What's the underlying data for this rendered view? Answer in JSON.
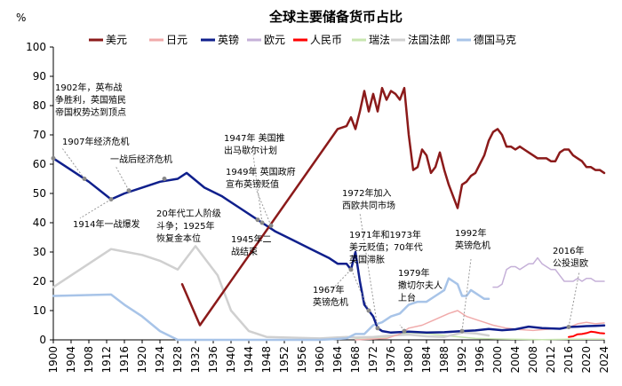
{
  "chart_data": {
    "type": "line",
    "title": "全球主要储备货币占比",
    "ylabel": "%",
    "xlim": [
      1900,
      2024
    ],
    "ylim": [
      0,
      100
    ],
    "yticks": [
      0,
      10,
      20,
      30,
      40,
      50,
      60,
      70,
      80,
      90,
      100
    ],
    "xticks": [
      1900,
      1904,
      1908,
      1912,
      1916,
      1920,
      1924,
      1928,
      1932,
      1936,
      1940,
      1944,
      1948,
      1952,
      1956,
      1960,
      1964,
      1968,
      1972,
      1976,
      1980,
      1984,
      1988,
      1992,
      1996,
      2000,
      2004,
      2008,
      2012,
      2016,
      2020,
      2024
    ],
    "legend": [
      "美元",
      "日元",
      "英镑",
      "欧元",
      "人民币",
      "瑞法",
      "法国法郎",
      "德国马克"
    ],
    "series": [
      {
        "name": "美元",
        "color": "#8B1A1A",
        "width": 2.5,
        "points": [
          [
            1929,
            19
          ],
          [
            1933,
            5
          ],
          [
            1964,
            72
          ],
          [
            1966,
            73
          ],
          [
            1967,
            76
          ],
          [
            1968,
            72
          ],
          [
            1969,
            78
          ],
          [
            1970,
            85
          ],
          [
            1971,
            78
          ],
          [
            1972,
            84
          ],
          [
            1973,
            78
          ],
          [
            1974,
            86
          ],
          [
            1975,
            82
          ],
          [
            1976,
            85
          ],
          [
            1977,
            84
          ],
          [
            1978,
            82
          ],
          [
            1979,
            86
          ],
          [
            1980,
            70
          ],
          [
            1981,
            58
          ],
          [
            1982,
            59
          ],
          [
            1983,
            65
          ],
          [
            1984,
            63
          ],
          [
            1985,
            57
          ],
          [
            1986,
            59
          ],
          [
            1987,
            64
          ],
          [
            1988,
            58
          ],
          [
            1989,
            53
          ],
          [
            1990,
            49
          ],
          [
            1991,
            45
          ],
          [
            1992,
            53
          ],
          [
            1993,
            54
          ],
          [
            1994,
            56
          ],
          [
            1995,
            57
          ],
          [
            1996,
            60
          ],
          [
            1997,
            63
          ],
          [
            1998,
            68
          ],
          [
            1999,
            71
          ],
          [
            2000,
            72
          ],
          [
            2001,
            70
          ],
          [
            2002,
            66
          ],
          [
            2003,
            66
          ],
          [
            2004,
            65
          ],
          [
            2005,
            66
          ],
          [
            2006,
            65
          ],
          [
            2007,
            64
          ],
          [
            2008,
            63
          ],
          [
            2009,
            62
          ],
          [
            2010,
            62
          ],
          [
            2011,
            62
          ],
          [
            2012,
            61
          ],
          [
            2013,
            61
          ],
          [
            2014,
            64
          ],
          [
            2015,
            65
          ],
          [
            2016,
            65
          ],
          [
            2017,
            63
          ],
          [
            2018,
            62
          ],
          [
            2019,
            61
          ],
          [
            2020,
            59
          ],
          [
            2021,
            59
          ],
          [
            2022,
            58
          ],
          [
            2023,
            58
          ],
          [
            2024,
            57
          ]
        ]
      },
      {
        "name": "日元",
        "color": "#F0AAAA",
        "width": 1.5,
        "points": [
          [
            1968,
            0
          ],
          [
            1975,
            0.5
          ],
          [
            1978,
            2
          ],
          [
            1980,
            4
          ],
          [
            1983,
            5
          ],
          [
            1986,
            7
          ],
          [
            1989,
            9
          ],
          [
            1991,
            10
          ],
          [
            1993,
            8
          ],
          [
            1995,
            7
          ],
          [
            1997,
            6
          ],
          [
            1999,
            5
          ],
          [
            2002,
            4
          ],
          [
            2005,
            3.5
          ],
          [
            2008,
            3.2
          ],
          [
            2011,
            3.6
          ],
          [
            2014,
            3.9
          ],
          [
            2016,
            4.2
          ],
          [
            2018,
            5.5
          ],
          [
            2020,
            6
          ],
          [
            2022,
            5.5
          ],
          [
            2024,
            5.8
          ]
        ]
      },
      {
        "name": "英镑",
        "color": "#0F1F8C",
        "width": 2.5,
        "points": [
          [
            1900,
            62
          ],
          [
            1904,
            58
          ],
          [
            1908,
            54
          ],
          [
            1913,
            48
          ],
          [
            1916,
            50
          ],
          [
            1920,
            52
          ],
          [
            1924,
            54
          ],
          [
            1928,
            55
          ],
          [
            1930,
            57
          ],
          [
            1934,
            52
          ],
          [
            1938,
            49
          ],
          [
            1942,
            45
          ],
          [
            1946,
            41
          ],
          [
            1950,
            37
          ],
          [
            1954,
            34
          ],
          [
            1958,
            31
          ],
          [
            1962,
            28
          ],
          [
            1964,
            26
          ],
          [
            1966,
            26
          ],
          [
            1967,
            24
          ],
          [
            1968,
            30
          ],
          [
            1969,
            20
          ],
          [
            1970,
            12
          ],
          [
            1971,
            10
          ],
          [
            1972,
            8
          ],
          [
            1973,
            4
          ],
          [
            1974,
            3
          ],
          [
            1976,
            2.5
          ],
          [
            1980,
            2.8
          ],
          [
            1984,
            2.5
          ],
          [
            1988,
            2.6
          ],
          [
            1992,
            3
          ],
          [
            1995,
            3.2
          ],
          [
            1998,
            3.7
          ],
          [
            2001,
            3.3
          ],
          [
            2004,
            3.6
          ],
          [
            2007,
            4.5
          ],
          [
            2010,
            4
          ],
          [
            2014,
            3.8
          ],
          [
            2016,
            4.4
          ],
          [
            2018,
            4.5
          ],
          [
            2020,
            4.7
          ],
          [
            2022,
            4.8
          ],
          [
            2024,
            4.9
          ]
        ]
      },
      {
        "name": "欧元",
        "color": "#C5B0D8",
        "width": 1.5,
        "points": [
          [
            1999,
            18
          ],
          [
            2000,
            18
          ],
          [
            2001,
            19
          ],
          [
            2002,
            24
          ],
          [
            2003,
            25
          ],
          [
            2004,
            25
          ],
          [
            2005,
            24
          ],
          [
            2006,
            25
          ],
          [
            2007,
            26
          ],
          [
            2008,
            26
          ],
          [
            2009,
            28
          ],
          [
            2010,
            26
          ],
          [
            2011,
            25
          ],
          [
            2012,
            24
          ],
          [
            2013,
            24
          ],
          [
            2014,
            22
          ],
          [
            2015,
            20
          ],
          [
            2016,
            20
          ],
          [
            2017,
            20
          ],
          [
            2018,
            21
          ],
          [
            2019,
            20
          ],
          [
            2020,
            21
          ],
          [
            2021,
            21
          ],
          [
            2022,
            20
          ],
          [
            2023,
            20
          ],
          [
            2024,
            20
          ]
        ]
      },
      {
        "name": "人民币",
        "color": "#FF0000",
        "width": 2,
        "points": [
          [
            2016,
            1
          ],
          [
            2017,
            1.2
          ],
          [
            2018,
            1.9
          ],
          [
            2019,
            2
          ],
          [
            2020,
            2.3
          ],
          [
            2021,
            2.8
          ],
          [
            2022,
            2.6
          ],
          [
            2023,
            2.3
          ],
          [
            2024,
            2.2
          ]
        ]
      },
      {
        "name": "瑞法",
        "color": "#C8E6B0",
        "width": 1.5,
        "points": [
          [
            1968,
            0.5
          ],
          [
            1975,
            1
          ],
          [
            1980,
            2.5
          ],
          [
            1985,
            2
          ],
          [
            1990,
            1.2
          ],
          [
            1995,
            0.5
          ],
          [
            2000,
            0.3
          ],
          [
            2010,
            0.1
          ],
          [
            2016,
            0.2
          ],
          [
            2020,
            0.2
          ],
          [
            2024,
            0.2
          ]
        ]
      },
      {
        "name": "法国法郎",
        "color": "#D0D0D0",
        "width": 2.5,
        "points": [
          [
            1900,
            18
          ],
          [
            1913,
            31
          ],
          [
            1920,
            29
          ],
          [
            1924,
            27
          ],
          [
            1928,
            24
          ],
          [
            1932,
            32
          ],
          [
            1934,
            28
          ],
          [
            1937,
            22
          ],
          [
            1940,
            10
          ],
          [
            1944,
            3
          ],
          [
            1948,
            1
          ],
          [
            1960,
            0.5
          ],
          [
            1966,
            1
          ],
          [
            1968,
            0.8
          ],
          [
            1972,
            1
          ],
          [
            1976,
            1.5
          ],
          [
            1980,
            1.8
          ],
          [
            1984,
            1.2
          ],
          [
            1988,
            1
          ],
          [
            1992,
            2.5
          ],
          [
            1995,
            2.2
          ],
          [
            1998,
            1.5
          ]
        ]
      },
      {
        "name": "德国马克",
        "color": "#A8C4E8",
        "width": 2.5,
        "points": [
          [
            1900,
            15
          ],
          [
            1913,
            15.5
          ],
          [
            1916,
            12
          ],
          [
            1920,
            8
          ],
          [
            1924,
            3
          ],
          [
            1928,
            0
          ],
          [
            1940,
            0
          ],
          [
            1960,
            0
          ],
          [
            1966,
            0.5
          ],
          [
            1968,
            2
          ],
          [
            1970,
            2
          ],
          [
            1972,
            5
          ],
          [
            1974,
            6
          ],
          [
            1976,
            8
          ],
          [
            1978,
            9
          ],
          [
            1980,
            12
          ],
          [
            1982,
            13
          ],
          [
            1984,
            13
          ],
          [
            1986,
            15
          ],
          [
            1988,
            17
          ],
          [
            1989,
            21
          ],
          [
            1990,
            20
          ],
          [
            1991,
            19
          ],
          [
            1992,
            15
          ],
          [
            1993,
            15
          ],
          [
            1994,
            17
          ],
          [
            1995,
            16
          ],
          [
            1996,
            15
          ],
          [
            1997,
            14
          ],
          [
            1998,
            14
          ]
        ]
      }
    ],
    "annotations": [
      {
        "year": 1900,
        "value": 62,
        "lines": [
          "1902年，英布战",
          "争胜利，英国殖民",
          "帝国权势达到顶点"
        ]
      },
      {
        "year": 1907,
        "value": 55,
        "lines": [
          "1907年经济危机"
        ]
      },
      {
        "year": 1913,
        "value": 48,
        "lines": [
          "1914年一战爆发"
        ]
      },
      {
        "year": 1917,
        "value": 51,
        "lines": [
          "一战后经济危机"
        ]
      },
      {
        "year": 1925,
        "value": 55,
        "lines": [
          "20年代工人阶级",
          "斗争；1925年",
          "恢复金本位"
        ]
      },
      {
        "year": 1946,
        "value": 41,
        "lines": [
          "1945年二",
          "战结束"
        ]
      },
      {
        "year": 1947,
        "value": 40,
        "lines": [
          "1947年 美国推",
          "出马歇尔计划"
        ]
      },
      {
        "year": 1949,
        "value": 39,
        "lines": [
          "1949年 英国政府",
          "宣布英镑贬值"
        ]
      },
      {
        "year": 1967,
        "value": 24,
        "lines": [
          "1967年",
          "英镑危机"
        ]
      },
      {
        "year": 1973,
        "value": 4,
        "lines": [
          "1972年加入",
          "西欧共同市场"
        ]
      },
      {
        "year": 1971,
        "value": 10,
        "lines": [
          "1971年和1973年",
          "美元贬值；70年代",
          "英国滞胀"
        ]
      },
      {
        "year": 1979,
        "value": 3,
        "lines": [
          "1979年",
          "撒切尔夫人",
          "上台"
        ]
      },
      {
        "year": 1992,
        "value": 3,
        "lines": [
          "1992年",
          "英镑危机"
        ]
      },
      {
        "year": 2016,
        "value": 4.4,
        "lines": [
          "2016年",
          "公投退欧"
        ]
      }
    ]
  }
}
